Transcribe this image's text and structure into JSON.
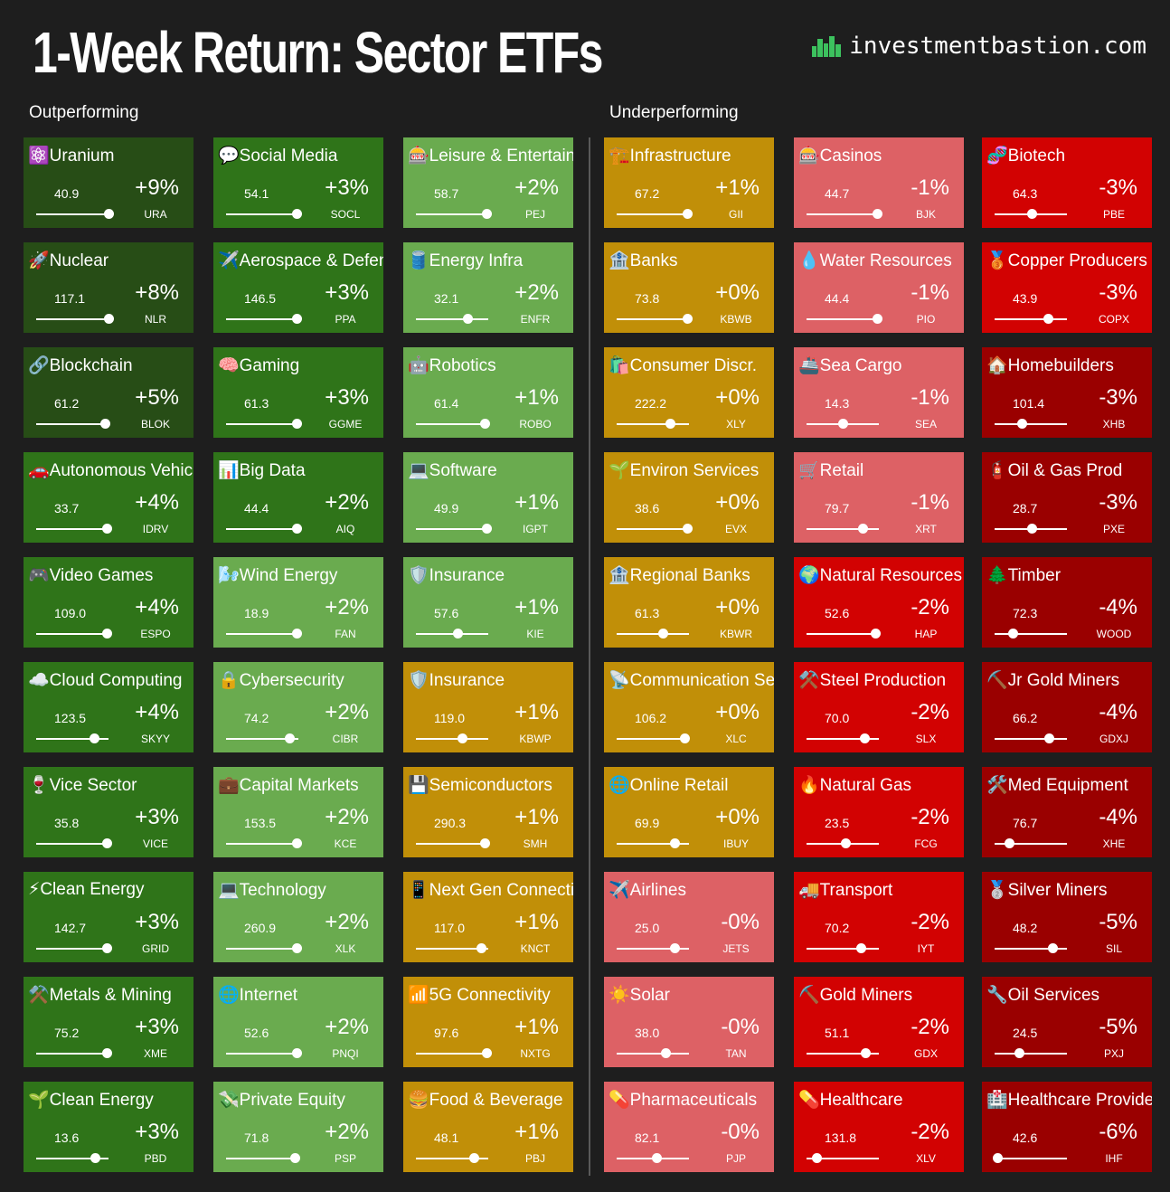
{
  "header": {
    "title": "1-Week Return: Sector ETFs",
    "site": "investmentbastion.com"
  },
  "sections": {
    "left": "Outperforming",
    "right": "Underperforming"
  },
  "colors": {
    "background": "#1e1e1e",
    "dark_green": "#274d16",
    "mid_green": "#2f7419",
    "light_green": "#6aab4f",
    "gold": "#c18f08",
    "pink": "#dd6165",
    "red": "#d20202",
    "dark_red": "#9a0000",
    "logo_green": "#3cc25e"
  },
  "chart_data": {
    "type": "heatmap",
    "title": "1-Week Return: Sector ETFs",
    "tiles": [
      {
        "name": "Uranium",
        "icon": "⚛️",
        "price": "40.9",
        "ret": "+9%",
        "ticker": "URA",
        "pct": 1.0,
        "color": "#274d16"
      },
      {
        "name": "Nuclear",
        "icon": "🚀",
        "price": "117.1",
        "ret": "+8%",
        "ticker": "NLR",
        "pct": 1.0,
        "color": "#274d16"
      },
      {
        "name": "Blockchain",
        "icon": "🔗",
        "price": "61.2",
        "ret": "+5%",
        "ticker": "BLOK",
        "pct": 0.96,
        "color": "#274d16"
      },
      {
        "name": "Autonomous Vehicles",
        "icon": "🚗",
        "price": "33.7",
        "ret": "+4%",
        "ticker": "IDRV",
        "pct": 0.98,
        "color": "#2f7419"
      },
      {
        "name": "Video Games",
        "icon": "🎮",
        "price": "109.0",
        "ret": "+4%",
        "ticker": "ESPO",
        "pct": 0.98,
        "color": "#2f7419"
      },
      {
        "name": "Cloud Computing",
        "icon": "☁️",
        "price": "123.5",
        "ret": "+4%",
        "ticker": "SKYY",
        "pct": 0.8,
        "color": "#2f7419"
      },
      {
        "name": "Vice Sector",
        "icon": "🍷",
        "price": "35.8",
        "ret": "+3%",
        "ticker": "VICE",
        "pct": 0.98,
        "color": "#2f7419"
      },
      {
        "name": "Clean Energy",
        "icon": "⚡",
        "price": "142.7",
        "ret": "+3%",
        "ticker": "GRID",
        "pct": 0.98,
        "color": "#2f7419"
      },
      {
        "name": "Metals & Mining",
        "icon": "⚒️",
        "price": "75.2",
        "ret": "+3%",
        "ticker": "XME",
        "pct": 0.98,
        "color": "#2f7419"
      },
      {
        "name": "Clean Energy",
        "icon": "🌱",
        "price": "13.6",
        "ret": "+3%",
        "ticker": "PBD",
        "pct": 0.82,
        "color": "#2f7419"
      },
      {
        "name": "Social Media",
        "icon": "💬",
        "price": "54.1",
        "ret": "+3%",
        "ticker": "SOCL",
        "pct": 0.98,
        "color": "#2f7419"
      },
      {
        "name": "Aerospace & Defense",
        "icon": "✈️",
        "price": "146.5",
        "ret": "+3%",
        "ticker": "PPA",
        "pct": 0.98,
        "color": "#2f7419"
      },
      {
        "name": "Gaming",
        "icon": "🧠",
        "price": "61.3",
        "ret": "+3%",
        "ticker": "GGME",
        "pct": 0.98,
        "color": "#2f7419"
      },
      {
        "name": "Big Data",
        "icon": "📊",
        "price": "44.4",
        "ret": "+2%",
        "ticker": "AIQ",
        "pct": 0.98,
        "color": "#2f7419"
      },
      {
        "name": "Wind Energy",
        "icon": "🌬️",
        "price": "18.9",
        "ret": "+2%",
        "ticker": "FAN",
        "pct": 0.98,
        "color": "#6aab4f"
      },
      {
        "name": "Cybersecurity",
        "icon": "🔒",
        "price": "74.2",
        "ret": "+2%",
        "ticker": "CIBR",
        "pct": 0.88,
        "color": "#6aab4f"
      },
      {
        "name": "Capital Markets",
        "icon": "💼",
        "price": "153.5",
        "ret": "+2%",
        "ticker": "KCE",
        "pct": 0.98,
        "color": "#6aab4f"
      },
      {
        "name": "Technology",
        "icon": "💻",
        "price": "260.9",
        "ret": "+2%",
        "ticker": "XLK",
        "pct": 0.98,
        "color": "#6aab4f"
      },
      {
        "name": "Internet",
        "icon": "🌐",
        "price": "52.6",
        "ret": "+2%",
        "ticker": "PNQI",
        "pct": 0.98,
        "color": "#6aab4f"
      },
      {
        "name": "Private Equity",
        "icon": "💸",
        "price": "71.8",
        "ret": "+2%",
        "ticker": "PSP",
        "pct": 0.96,
        "color": "#6aab4f"
      },
      {
        "name": "Leisure & Entertainment",
        "icon": "🎰",
        "price": "58.7",
        "ret": "+2%",
        "ticker": "PEJ",
        "pct": 0.98,
        "color": "#6aab4f"
      },
      {
        "name": "Energy Infra",
        "icon": "🛢️",
        "price": "32.1",
        "ret": "+2%",
        "ticker": "ENFR",
        "pct": 0.72,
        "color": "#6aab4f"
      },
      {
        "name": "Robotics",
        "icon": "🤖",
        "price": "61.4",
        "ret": "+1%",
        "ticker": "ROBO",
        "pct": 0.96,
        "color": "#6aab4f"
      },
      {
        "name": "Software",
        "icon": "💻",
        "price": "49.9",
        "ret": "+1%",
        "ticker": "IGPT",
        "pct": 0.98,
        "color": "#6aab4f"
      },
      {
        "name": "Insurance",
        "icon": "🛡️",
        "price": "57.6",
        "ret": "+1%",
        "ticker": "KIE",
        "pct": 0.58,
        "color": "#6aab4f"
      },
      {
        "name": "Insurance",
        "icon": "🛡️",
        "price": "119.0",
        "ret": "+1%",
        "ticker": "KBWP",
        "pct": 0.64,
        "color": "#c18f08"
      },
      {
        "name": "Semiconductors",
        "icon": "💾",
        "price": "290.3",
        "ret": "+1%",
        "ticker": "SMH",
        "pct": 0.96,
        "color": "#c18f08"
      },
      {
        "name": "Next Gen Connectivity",
        "icon": "📱",
        "price": "117.0",
        "ret": "+1%",
        "ticker": "KNCT",
        "pct": 0.9,
        "color": "#c18f08"
      },
      {
        "name": "5G Connectivity",
        "icon": "📶",
        "price": "97.6",
        "ret": "+1%",
        "ticker": "NXTG",
        "pct": 0.98,
        "color": "#c18f08"
      },
      {
        "name": "Food & Beverage",
        "icon": "🍔",
        "price": "48.1",
        "ret": "+1%",
        "ticker": "PBJ",
        "pct": 0.8,
        "color": "#c18f08"
      },
      {
        "name": "Infrastructure",
        "icon": "🏗️",
        "price": "67.2",
        "ret": "+1%",
        "ticker": "GII",
        "pct": 0.98,
        "color": "#c18f08"
      },
      {
        "name": "Banks",
        "icon": "🏦",
        "price": "73.8",
        "ret": "+0%",
        "ticker": "KBWB",
        "pct": 0.98,
        "color": "#c18f08"
      },
      {
        "name": "Consumer Discr.",
        "icon": "🛍️",
        "price": "222.2",
        "ret": "+0%",
        "ticker": "XLY",
        "pct": 0.74,
        "color": "#c18f08"
      },
      {
        "name": "Environ Services",
        "icon": "🌱",
        "price": "38.6",
        "ret": "+0%",
        "ticker": "EVX",
        "pct": 0.98,
        "color": "#c18f08"
      },
      {
        "name": "Regional Banks",
        "icon": "🏦",
        "price": "61.3",
        "ret": "+0%",
        "ticker": "KBWR",
        "pct": 0.64,
        "color": "#c18f08"
      },
      {
        "name": "Communication Services",
        "icon": "📡",
        "price": "106.2",
        "ret": "+0%",
        "ticker": "XLC",
        "pct": 0.94,
        "color": "#c18f08"
      },
      {
        "name": "Online Retail",
        "icon": "🌐",
        "price": "69.9",
        "ret": "+0%",
        "ticker": "IBUY",
        "pct": 0.8,
        "color": "#c18f08"
      },
      {
        "name": "Airlines",
        "icon": "✈️",
        "price": "25.0",
        "ret": "-0%",
        "ticker": "JETS",
        "pct": 0.8,
        "color": "#dd6165"
      },
      {
        "name": "Solar",
        "icon": "☀️",
        "price": "38.0",
        "ret": "-0%",
        "ticker": "TAN",
        "pct": 0.68,
        "color": "#dd6165"
      },
      {
        "name": "Pharmaceuticals",
        "icon": "💊",
        "price": "82.1",
        "ret": "-0%",
        "ticker": "PJP",
        "pct": 0.56,
        "color": "#dd6165"
      },
      {
        "name": "Casinos",
        "icon": "🎰",
        "price": "44.7",
        "ret": "-1%",
        "ticker": "BJK",
        "pct": 0.98,
        "color": "#dd6165"
      },
      {
        "name": "Water Resources",
        "icon": "💧",
        "price": "44.4",
        "ret": "-1%",
        "ticker": "PIO",
        "pct": 0.98,
        "color": "#dd6165"
      },
      {
        "name": "Sea Cargo",
        "icon": "🚢",
        "price": "14.3",
        "ret": "-1%",
        "ticker": "SEA",
        "pct": 0.5,
        "color": "#dd6165"
      },
      {
        "name": "Retail",
        "icon": "🛒",
        "price": "79.7",
        "ret": "-1%",
        "ticker": "XRT",
        "pct": 0.78,
        "color": "#dd6165"
      },
      {
        "name": "Natural Resources",
        "icon": "🌍",
        "price": "52.6",
        "ret": "-2%",
        "ticker": "HAP",
        "pct": 0.96,
        "color": "#d20202"
      },
      {
        "name": "Steel Production",
        "icon": "⚒️",
        "price": "70.0",
        "ret": "-2%",
        "ticker": "SLX",
        "pct": 0.8,
        "color": "#d20202"
      },
      {
        "name": "Natural Gas",
        "icon": "🔥",
        "price": "23.5",
        "ret": "-2%",
        "ticker": "FCG",
        "pct": 0.54,
        "color": "#d20202"
      },
      {
        "name": "Transport",
        "icon": "🚚",
        "price": "70.2",
        "ret": "-2%",
        "ticker": "IYT",
        "pct": 0.76,
        "color": "#d20202"
      },
      {
        "name": "Gold Miners",
        "icon": "⛏️",
        "price": "51.1",
        "ret": "-2%",
        "ticker": "GDX",
        "pct": 0.82,
        "color": "#d20202"
      },
      {
        "name": "Healthcare",
        "icon": "💊",
        "price": "131.8",
        "ret": "-2%",
        "ticker": "XLV",
        "pct": 0.14,
        "color": "#d20202"
      },
      {
        "name": "Biotech",
        "icon": "🧬",
        "price": "64.3",
        "ret": "-3%",
        "ticker": "PBE",
        "pct": 0.52,
        "color": "#d20202"
      },
      {
        "name": "Copper Producers",
        "icon": "🥉",
        "price": "43.9",
        "ret": "-3%",
        "ticker": "COPX",
        "pct": 0.74,
        "color": "#d20202"
      },
      {
        "name": "Homebuilders",
        "icon": "🏠",
        "price": "101.4",
        "ret": "-3%",
        "ticker": "XHB",
        "pct": 0.38,
        "color": "#9a0000"
      },
      {
        "name": "Oil & Gas Prod",
        "icon": "🧯",
        "price": "28.7",
        "ret": "-3%",
        "ticker": "PXE",
        "pct": 0.52,
        "color": "#9a0000"
      },
      {
        "name": "Timber",
        "icon": "🌲",
        "price": "72.3",
        "ret": "-4%",
        "ticker": "WOOD",
        "pct": 0.26,
        "color": "#9a0000"
      },
      {
        "name": "Jr Gold Miners",
        "icon": "⛏️",
        "price": "66.2",
        "ret": "-4%",
        "ticker": "GDXJ",
        "pct": 0.76,
        "color": "#9a0000"
      },
      {
        "name": "Med Equipment",
        "icon": "🛠️",
        "price": "76.7",
        "ret": "-4%",
        "ticker": "XHE",
        "pct": 0.2,
        "color": "#9a0000"
      },
      {
        "name": "Silver Miners",
        "icon": "🥈",
        "price": "48.2",
        "ret": "-5%",
        "ticker": "SIL",
        "pct": 0.8,
        "color": "#9a0000"
      },
      {
        "name": "Oil Services",
        "icon": "🔧",
        "price": "24.5",
        "ret": "-5%",
        "ticker": "PXJ",
        "pct": 0.34,
        "color": "#9a0000"
      },
      {
        "name": "Healthcare Providers",
        "icon": "🏥",
        "price": "42.6",
        "ret": "-6%",
        "ticker": "IHF",
        "pct": 0.04,
        "color": "#9a0000"
      }
    ]
  }
}
